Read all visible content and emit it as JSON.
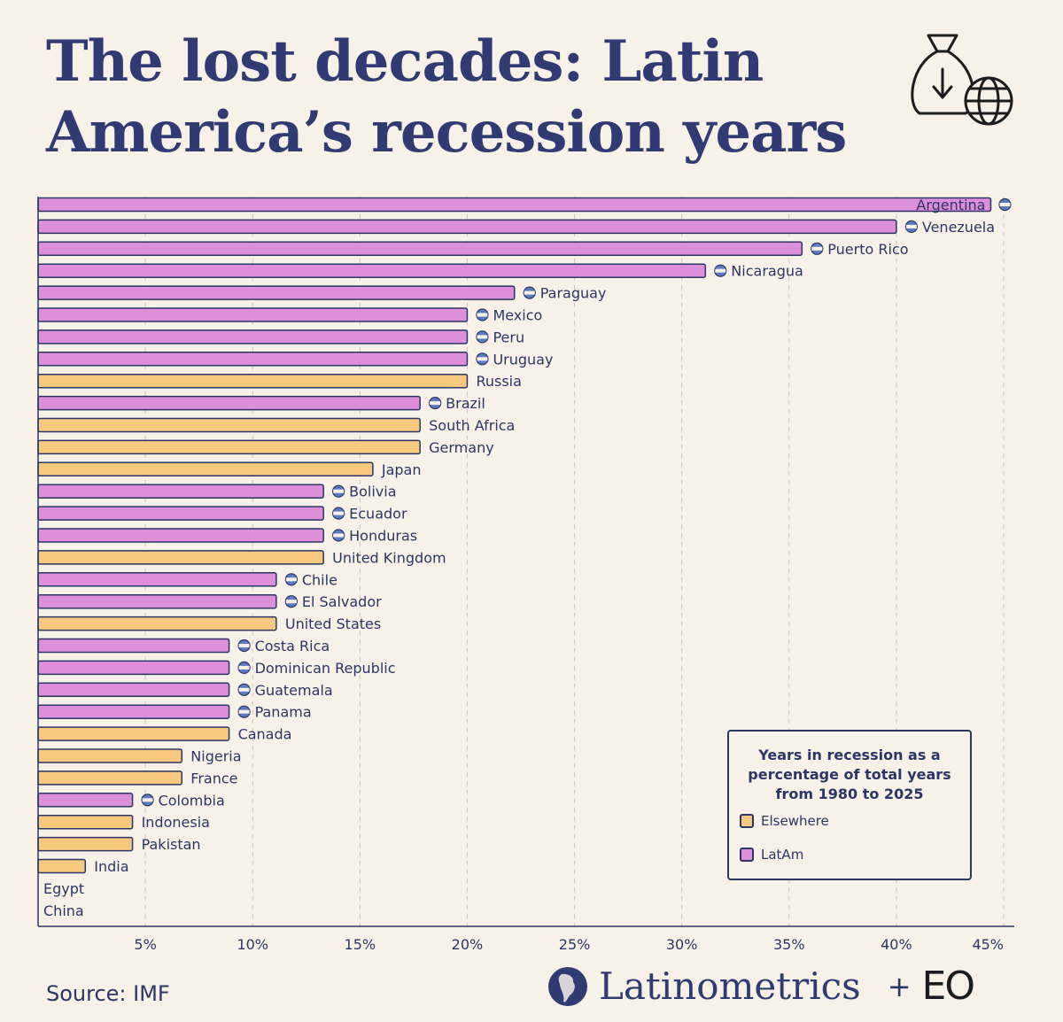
{
  "title": "The lost decades: Latin America’s recession years",
  "source": "Source: IMF",
  "brand": {
    "name": "Latinometrics",
    "plus": "+",
    "partner": "EO"
  },
  "colors": {
    "latam": "#dd8fdc",
    "elsewhere": "#f6c97f",
    "outline": "#2b3566",
    "background": "#f7f1e8",
    "grid": "#c9c3bc"
  },
  "legend": {
    "title": "Years in recession as a percentage of total years from 1980 to 2025",
    "items": [
      {
        "label": "Elsewhere",
        "group": "elsewhere"
      },
      {
        "label": "LatAm",
        "group": "latam"
      }
    ]
  },
  "chart_data": {
    "type": "bar",
    "orientation": "horizontal",
    "title": "Years in recession as a percentage of total years from 1980 to 2025",
    "xlabel": "",
    "ylabel": "",
    "xlim": [
      0,
      45
    ],
    "xticks": [
      5,
      10,
      15,
      20,
      25,
      30,
      35,
      40,
      45
    ],
    "tick_format": "%",
    "grid": true,
    "legend_position": "bottom-right",
    "categories": [
      "Argentina",
      "Venezuela",
      "Puerto Rico",
      "Nicaragua",
      "Paraguay",
      "Mexico",
      "Peru",
      "Uruguay",
      "Russia",
      "Brazil",
      "South Africa",
      "Germany",
      "Japan",
      "Bolivia",
      "Ecuador",
      "Honduras",
      "United Kingdom",
      "Chile",
      "El Salvador",
      "United States",
      "Costa Rica",
      "Dominican Republic",
      "Guatemala",
      "Panama",
      "Canada",
      "Nigeria",
      "France",
      "Colombia",
      "Indonesia",
      "Pakistan",
      "India",
      "Egypt",
      "China"
    ],
    "values": [
      44.4,
      40.0,
      35.6,
      31.1,
      22.2,
      20.0,
      20.0,
      20.0,
      20.0,
      17.8,
      17.8,
      17.8,
      15.6,
      13.3,
      13.3,
      13.3,
      13.3,
      11.1,
      11.1,
      11.1,
      8.9,
      8.9,
      8.9,
      8.9,
      8.9,
      6.7,
      6.7,
      4.4,
      4.4,
      4.4,
      2.2,
      0,
      0
    ],
    "groups": [
      "latam",
      "latam",
      "latam",
      "latam",
      "latam",
      "latam",
      "latam",
      "latam",
      "elsewhere",
      "latam",
      "elsewhere",
      "elsewhere",
      "elsewhere",
      "latam",
      "latam",
      "latam",
      "elsewhere",
      "latam",
      "latam",
      "elsewhere",
      "latam",
      "latam",
      "latam",
      "latam",
      "elsewhere",
      "elsewhere",
      "elsewhere",
      "latam",
      "elsewhere",
      "elsewhere",
      "elsewhere",
      "elsewhere",
      "elsewhere"
    ]
  }
}
